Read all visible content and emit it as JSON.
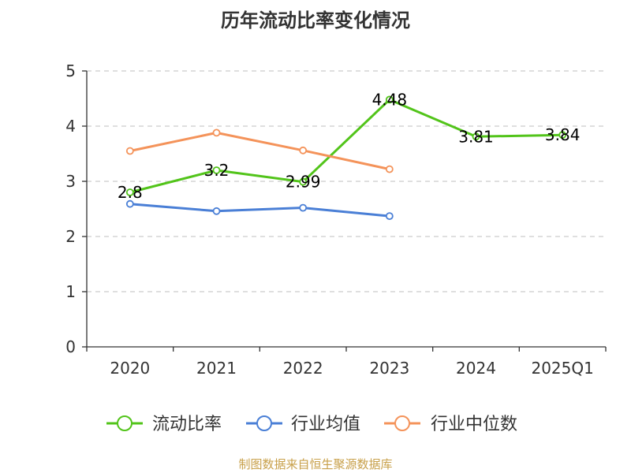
{
  "title": "历年流动比率变化情况",
  "source": "制图数据来自恒生聚源数据库",
  "chart_data": {
    "type": "line",
    "categories": [
      "2020",
      "2021",
      "2022",
      "2023",
      "2024",
      "2025Q1"
    ],
    "ylim": [
      0,
      5
    ],
    "yticks": [
      0,
      1,
      2,
      3,
      4,
      5
    ],
    "grid": true,
    "legend_position": "bottom",
    "series": [
      {
        "name": "流动比率",
        "color": "#52c41a",
        "values": [
          2.8,
          3.2,
          2.99,
          4.48,
          3.81,
          3.84
        ],
        "labels": [
          "2.8",
          "3.2",
          "2.99",
          "4.48",
          "3.81",
          "3.84"
        ]
      },
      {
        "name": "行业均值",
        "color": "#4a7fd6",
        "values": [
          2.59,
          2.46,
          2.52,
          2.37,
          null,
          null
        ]
      },
      {
        "name": "行业中位数",
        "color": "#f4935a",
        "values": [
          3.55,
          3.88,
          3.56,
          3.22,
          null,
          null
        ]
      }
    ]
  }
}
